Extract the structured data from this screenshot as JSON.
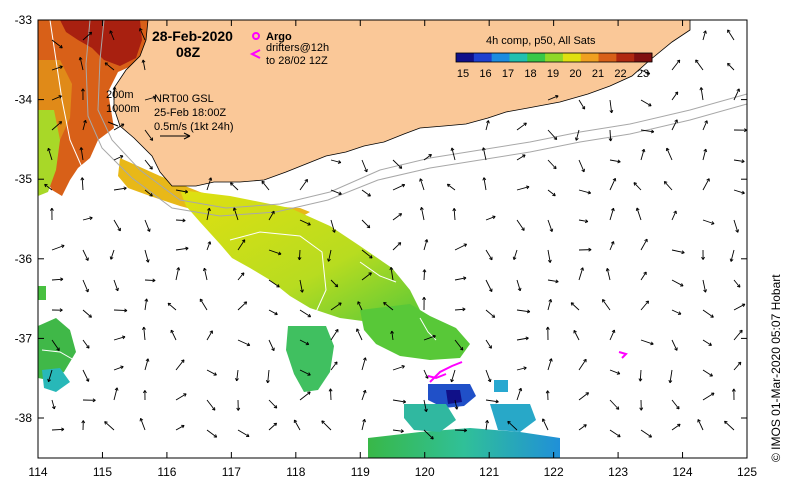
{
  "header": {
    "date": "28-Feb-2020",
    "hour": "08Z"
  },
  "legend": {
    "argo_label": "Argo",
    "drifters_line1": "drifters@12h",
    "drifters_line2": "to 28/02 12Z",
    "argo_color": "#ff00ff",
    "drifter_color": "#ff00ff"
  },
  "contours": {
    "depth_200": "200m",
    "depth_1000": "1000m"
  },
  "altimetry": {
    "product": "NRT00 GSL",
    "valid": "25-Feb 18:00Z",
    "scale": "0.5m/s (1kt 24h)"
  },
  "colorbar": {
    "title": "4h comp, p50, All Sats",
    "ticks": [
      "15",
      "16",
      "17",
      "18",
      "19",
      "20",
      "21",
      "22",
      "23"
    ],
    "colors": [
      "#10108a",
      "#1e40d0",
      "#1c8ce0",
      "#20c0b0",
      "#38c848",
      "#90d828",
      "#e0e010",
      "#f0a020",
      "#d86018",
      "#b02810",
      "#801010"
    ]
  },
  "axes": {
    "x_ticks": [
      "114",
      "115",
      "116",
      "117",
      "118",
      "119",
      "120",
      "121",
      "122",
      "123",
      "124",
      "125"
    ],
    "y_ticks": [
      "-33",
      "-34",
      "-35",
      "-36",
      "-37",
      "-38"
    ]
  },
  "credit": "© IMOS 01-Mar-2020 05:07 Hobart",
  "colors": {
    "land": "#fac898",
    "ocean": "#ffffff",
    "arrow": "#000000"
  }
}
